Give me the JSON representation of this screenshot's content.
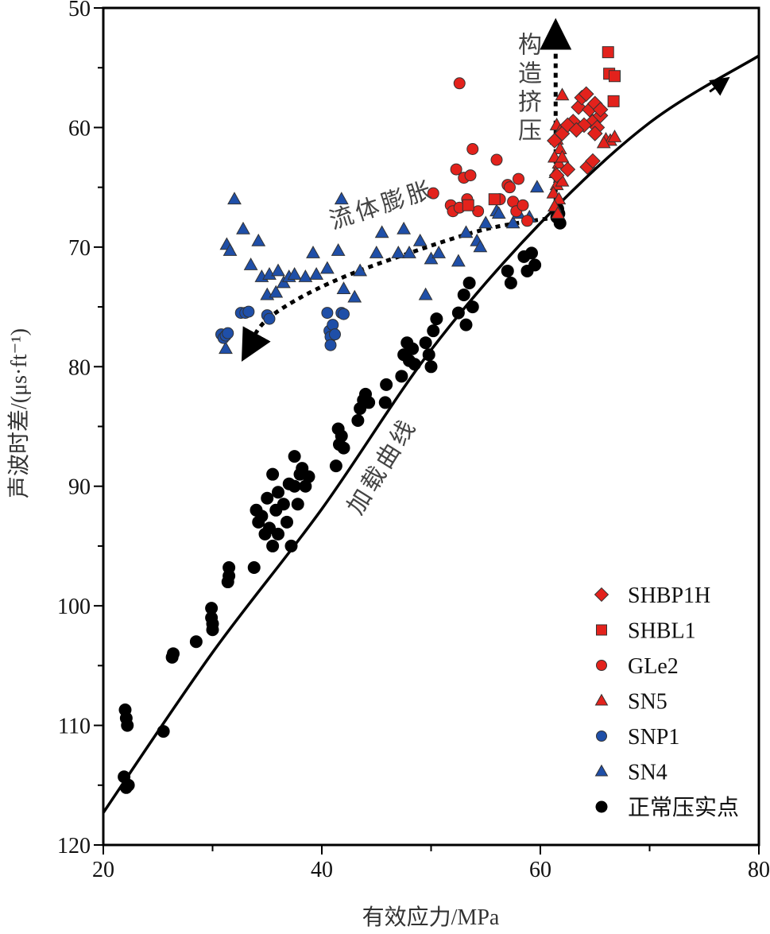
{
  "chart_data": {
    "type": "scatter",
    "xlabel": "有效应力/MPa",
    "ylabel": "声波时差/(μs·ft⁻¹)",
    "xlim": [
      20,
      80
    ],
    "ylim": [
      120,
      50
    ],
    "y_inverted": true,
    "xticks": [
      20,
      40,
      60,
      80
    ],
    "xminor": [
      30,
      50,
      70
    ],
    "yticks": [
      50,
      60,
      70,
      80,
      90,
      100,
      110,
      120
    ],
    "grid": false,
    "legend_position": "bottom-right",
    "series": [
      {
        "name": "SHBP1H",
        "marker": "diamond",
        "color": "#e3221c",
        "points": [
          [
            61.3,
            61.1
          ],
          [
            61.5,
            64
          ],
          [
            62.5,
            63.5
          ],
          [
            63,
            59.5
          ],
          [
            63.5,
            58.3
          ],
          [
            63.8,
            57.5
          ],
          [
            64.2,
            57.2
          ],
          [
            64.5,
            58.5
          ],
          [
            64.8,
            59.5
          ],
          [
            65,
            58
          ],
          [
            65.2,
            60
          ],
          [
            65.5,
            59
          ],
          [
            65,
            60.5
          ],
          [
            65.5,
            58.5
          ],
          [
            64.3,
            63.3
          ],
          [
            64.8,
            62.8
          ],
          [
            62,
            60.5
          ],
          [
            62.5,
            59.8
          ],
          [
            64,
            59.8
          ],
          [
            63.3,
            60.2
          ]
        ]
      },
      {
        "name": "SHBL1",
        "marker": "square",
        "color": "#e3221c",
        "points": [
          [
            53.4,
            66.5
          ],
          [
            55.8,
            66
          ],
          [
            66.2,
            53.7
          ],
          [
            66.3,
            55.5
          ],
          [
            66.8,
            55.7
          ],
          [
            66.7,
            57.8
          ]
        ]
      },
      {
        "name": "GLe2",
        "marker": "circle",
        "color": "#e3221c",
        "points": [
          [
            50.2,
            65.5
          ],
          [
            51.8,
            66.5
          ],
          [
            52,
            67
          ],
          [
            52.3,
            63.5
          ],
          [
            52.6,
            66.7
          ],
          [
            52.6,
            56.3
          ],
          [
            53,
            64.2
          ],
          [
            53.3,
            66
          ],
          [
            53.6,
            64
          ],
          [
            53.8,
            61.8
          ],
          [
            54.3,
            67
          ],
          [
            56,
            62.7
          ],
          [
            56.3,
            66
          ],
          [
            57,
            64.8
          ],
          [
            57.2,
            65
          ],
          [
            57.5,
            66.2
          ],
          [
            57.8,
            67
          ],
          [
            58,
            64.3
          ],
          [
            58.4,
            66.5
          ],
          [
            58.8,
            67.8
          ]
        ]
      },
      {
        "name": "SN5",
        "marker": "triangle",
        "color": "#e3221c",
        "points": [
          [
            62,
            57.3
          ],
          [
            61.5,
            59.8
          ],
          [
            61.8,
            60.3
          ],
          [
            61.5,
            61
          ],
          [
            61.8,
            61.8
          ],
          [
            61.3,
            62.5
          ],
          [
            61.7,
            63
          ],
          [
            61.4,
            63.8
          ],
          [
            61.8,
            64.2
          ],
          [
            61.5,
            64.8
          ],
          [
            61.2,
            65.5
          ],
          [
            61.7,
            66
          ],
          [
            61.3,
            66.6
          ],
          [
            61.6,
            67.2
          ],
          [
            62,
            62.5
          ],
          [
            62,
            64.5
          ],
          [
            66,
            61
          ],
          [
            66.4,
            61.1
          ],
          [
            66.8,
            60.8
          ],
          [
            65.8,
            61.3
          ]
        ]
      },
      {
        "name": "SNP1",
        "marker": "circle",
        "color": "#1f4fa8",
        "points": [
          [
            30.8,
            77.3
          ],
          [
            31,
            77.6
          ],
          [
            31.2,
            77.4
          ],
          [
            31.4,
            77.2
          ],
          [
            32.6,
            75.5
          ],
          [
            33,
            75.5
          ],
          [
            33.3,
            75.4
          ],
          [
            35,
            75.7
          ],
          [
            35.2,
            76
          ],
          [
            40.5,
            75.5
          ],
          [
            40.7,
            77
          ],
          [
            40.8,
            77.5
          ],
          [
            40.8,
            78.2
          ],
          [
            41,
            76.5
          ],
          [
            41.2,
            77.3
          ],
          [
            41.8,
            75.5
          ],
          [
            42,
            75.6
          ]
        ]
      },
      {
        "name": "SN4",
        "marker": "triangle",
        "color": "#1f4fa8",
        "points": [
          [
            31.2,
            78.5
          ],
          [
            31.3,
            69.8
          ],
          [
            31.6,
            70.3
          ],
          [
            32,
            66
          ],
          [
            32.8,
            68.5
          ],
          [
            33.5,
            71.5
          ],
          [
            34.2,
            69.5
          ],
          [
            34.5,
            72.5
          ],
          [
            35,
            74
          ],
          [
            35.2,
            72.3
          ],
          [
            35.8,
            73.8
          ],
          [
            36,
            72
          ],
          [
            36.5,
            73
          ],
          [
            37,
            72.5
          ],
          [
            37.5,
            72.3
          ],
          [
            38.5,
            72.5
          ],
          [
            39.2,
            70.5
          ],
          [
            39.5,
            72.3
          ],
          [
            40.5,
            71.8
          ],
          [
            41.5,
            70.3
          ],
          [
            41.8,
            66
          ],
          [
            42,
            73.5
          ],
          [
            43,
            74.2
          ],
          [
            43.5,
            72
          ],
          [
            45,
            70.5
          ],
          [
            45.5,
            68.8
          ],
          [
            47,
            70.5
          ],
          [
            47.5,
            68.5
          ],
          [
            48,
            70.5
          ],
          [
            49,
            69.5
          ],
          [
            49.5,
            74
          ],
          [
            50,
            71
          ],
          [
            50.7,
            70.5
          ],
          [
            52.5,
            71.2
          ],
          [
            53.2,
            68.8
          ],
          [
            54.2,
            69.5
          ],
          [
            54.5,
            70
          ],
          [
            55,
            68
          ],
          [
            56,
            67
          ],
          [
            56.2,
            67.2
          ],
          [
            57.5,
            68
          ],
          [
            58,
            67.2
          ],
          [
            59,
            67.5
          ],
          [
            59.7,
            65
          ]
        ]
      },
      {
        "name": "正常压实点",
        "marker": "dot",
        "color": "#000000",
        "points": [
          [
            22,
            108.7
          ],
          [
            22.1,
            109.4
          ],
          [
            22.2,
            110
          ],
          [
            21.9,
            114.3
          ],
          [
            22.1,
            115.2
          ],
          [
            22.3,
            115
          ],
          [
            25.5,
            110.5
          ],
          [
            26.4,
            104
          ],
          [
            26.3,
            104.3
          ],
          [
            28.5,
            103
          ],
          [
            29.9,
            100.2
          ],
          [
            29.9,
            101
          ],
          [
            30,
            101.5
          ],
          [
            30,
            102
          ],
          [
            31.5,
            96.8
          ],
          [
            31.5,
            97.5
          ],
          [
            31.4,
            98
          ],
          [
            33.8,
            96.8
          ],
          [
            34,
            92
          ],
          [
            34.2,
            93
          ],
          [
            34.5,
            92.5
          ],
          [
            34.8,
            94
          ],
          [
            35,
            91
          ],
          [
            35.2,
            93.5
          ],
          [
            35.5,
            89
          ],
          [
            35.5,
            95
          ],
          [
            35.8,
            92
          ],
          [
            36,
            90.5
          ],
          [
            36,
            94
          ],
          [
            36.5,
            91.5
          ],
          [
            36.8,
            93
          ],
          [
            37,
            89.8
          ],
          [
            37.2,
            95
          ],
          [
            37.5,
            90
          ],
          [
            37.5,
            87.5
          ],
          [
            37.8,
            91.5
          ],
          [
            38,
            89
          ],
          [
            38.2,
            88.5
          ],
          [
            38.5,
            90
          ],
          [
            38.8,
            89.2
          ],
          [
            41.3,
            88.3
          ],
          [
            41.5,
            85.2
          ],
          [
            41.6,
            86.5
          ],
          [
            41.8,
            85.8
          ],
          [
            42,
            86.8
          ],
          [
            43.3,
            84.5
          ],
          [
            43.5,
            83.5
          ],
          [
            43.8,
            82.8
          ],
          [
            44,
            82.3
          ],
          [
            44.3,
            83
          ],
          [
            45.8,
            83
          ],
          [
            45.9,
            81.5
          ],
          [
            47.3,
            80.8
          ],
          [
            47.5,
            79
          ],
          [
            47.8,
            78
          ],
          [
            48,
            79.5
          ],
          [
            48.3,
            78.5
          ],
          [
            48.5,
            79.8
          ],
          [
            49.5,
            78
          ],
          [
            49.8,
            79
          ],
          [
            50,
            80
          ],
          [
            50.2,
            77
          ],
          [
            50.5,
            76
          ],
          [
            52.5,
            75.5
          ],
          [
            53,
            74
          ],
          [
            53.2,
            76.5
          ],
          [
            53.5,
            73
          ],
          [
            53.8,
            75
          ],
          [
            57,
            72
          ],
          [
            57.3,
            73
          ],
          [
            58.5,
            70.8
          ],
          [
            58.8,
            72
          ],
          [
            59.2,
            70.5
          ],
          [
            59.5,
            71.5
          ],
          [
            61.5,
            67.5
          ],
          [
            61.6,
            66.8
          ],
          [
            61.7,
            67.2
          ],
          [
            61.8,
            68
          ]
        ]
      }
    ],
    "trend_curve": {
      "name": "加载曲线",
      "points": [
        [
          20,
          117.3
        ],
        [
          30,
          103.9
        ],
        [
          40,
          91.9
        ],
        [
          50,
          78.6
        ],
        [
          60,
          68
        ],
        [
          70,
          59.6
        ],
        [
          80,
          54
        ]
      ]
    },
    "annotations": [
      {
        "text": "加载曲线",
        "anchor": [
          43.5,
          92.5
        ],
        "rotation": -58
      },
      {
        "text": "流体膨胀",
        "anchor": [
          41,
          68.5
        ],
        "rotation": -18
      },
      {
        "text": "构造挤压",
        "anchor": [
          58.8,
          52
        ],
        "rotation": 90
      }
    ],
    "arrows": [
      {
        "name": "fluid-expansion-arrow",
        "points": [
          [
            61.5,
            67.5
          ],
          [
            55,
            68.5
          ],
          [
            48,
            70.5
          ],
          [
            42,
            72.5
          ],
          [
            37.5,
            74.5
          ],
          [
            34.5,
            76.5
          ],
          [
            33,
            79
          ]
        ]
      },
      {
        "name": "tectonic-compression-arrow",
        "points": [
          [
            61.4,
            67
          ],
          [
            61.4,
            51.5
          ]
        ]
      }
    ]
  }
}
